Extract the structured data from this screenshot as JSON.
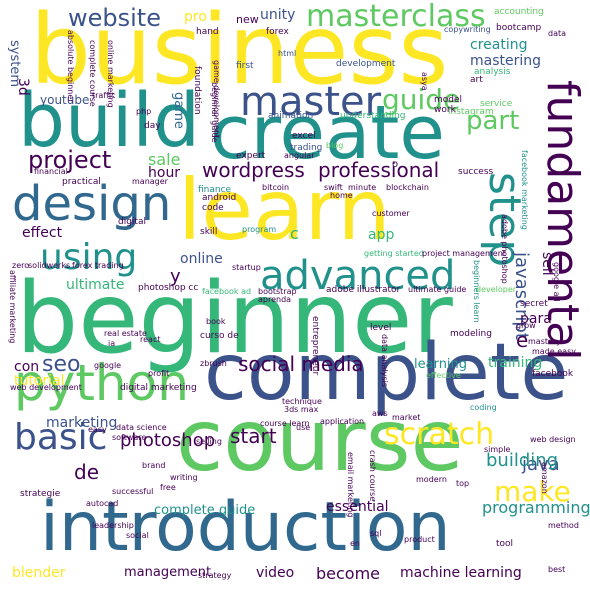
{
  "palette": {
    "dark_purple": "#440154",
    "indigo": "#3b528b",
    "teal": "#21918c",
    "green": "#5ec962",
    "yellow": "#fde725",
    "sea_green": "#35b779",
    "navy": "#31688e"
  },
  "words": {
    "business": "business",
    "create": "create",
    "learn": "learn",
    "build": "build",
    "beginner": "beginner",
    "complete": "complete",
    "course": "course",
    "introduction": "introduction",
    "python": "python",
    "design": "design",
    "master": "master",
    "fundamental": "fundamental",
    "step": "step",
    "advanced": "advanced",
    "using": "using",
    "masterclass": "masterclass",
    "website": "website",
    "wordpress": "wordpress",
    "professional": "professional",
    "project": "project",
    "guide": "guide",
    "part": "part",
    "scratch": "scratch",
    "basic": "basic",
    "make": "make",
    "social_media": "social media",
    "photoshop": "photoshop",
    "start": "start",
    "seo": "seo",
    "javascript": "javascript",
    "java": "java",
    "building": "building",
    "programming": "programming",
    "de": "de",
    "become": "become",
    "machine_learning": "machine learning",
    "blender": "blender",
    "video": "video",
    "management": "management",
    "essential": "essential",
    "complete_guide": "complete guide",
    "marketing": "marketing",
    "tutorial": "tutorial",
    "online": "online",
    "ultimate": "ultimate",
    "app": "app",
    "sale": "sale",
    "hour": "hour",
    "pro": "pro",
    "unity": "unity",
    "creating": "creating",
    "mastering": "mastering",
    "3d": "3d",
    "system": "system",
    "youtube": "youtube",
    "game": "game",
    "effect": "effect",
    "sell": "sell",
    "e": "e",
    "y": "y",
    "c": "c",
    "para": "para",
    "learning": "learning",
    "training": "training",
    "con": "con",
    "new": "new",
    "accounting": "accounting",
    "hand": "hand",
    "forex": "forex",
    "html": "html",
    "development": "development",
    "excel": "excel",
    "trading": "trading",
    "animation": "animation",
    "instagram": "instagram",
    "work": "work",
    "model": "model",
    "service": "service",
    "art": "art",
    "bootcamp": "bootcamp",
    "data": "data",
    "analysis": "analysis",
    "copywriting": "copywriting",
    "expert": "expert",
    "finance": "finance",
    "day": "day",
    "angular": "angular",
    "blog": "blog",
    "understanding": "understanding",
    "first": "first",
    "code": "code",
    "android": "android",
    "digital": "digital",
    "skill": "skill",
    "program": "program",
    "customer": "customer",
    "bitcoin": "bitcoin",
    "swift": "swift",
    "minute": "minute",
    "blockchain": "blockchain",
    "home": "home",
    "success": "success",
    "practical": "practical",
    "forex_trading": "forex trading",
    "solidworks": "solidworks",
    "zero": "zero",
    "photoshop_cc": "photoshop cc",
    "facebook_ad": "facebook ad",
    "bootstrap": "bootstrap",
    "adobe_illustrator": "adobe illustrator",
    "ultimate_guide": "ultimate guide",
    "getting_started": "getting started",
    "project_management": "project management",
    "beginners_learn": "beginners learn",
    "developer": "developer",
    "google_ad": "google ad",
    "adobe_photoshop": "adobe photoshop",
    "facebook_marketing": "facebook marketing",
    "affiliate_marketing": "affiliate marketing",
    "real_estate": "real estate",
    "ia": "ia",
    "react": "react",
    "curso_de": "curso de",
    "book": "book",
    "entrepreneur": "entrepreneur",
    "level": "level",
    "modeling": "modeling",
    "secret": "secret",
    "grow": "grow",
    "mastery": "mastery",
    "made_easy": "made easy",
    "google": "google",
    "profit": "profit",
    "zbrush": "zbrush",
    "data_analysis": "data analysis",
    "effective": "effective",
    "facebook": "facebook",
    "web_development": "web development",
    "digital_marketing": "digital marketing",
    "coding": "coding",
    "technique": "technique",
    "3ds_max": "3ds max",
    "aws": "aws",
    "market": "market",
    "easy": "easy",
    "software": "software",
    "data_science": "data science",
    "application": "application",
    "course_learn": "course learn",
    "use": "use",
    "web_design": "web design",
    "selling": "selling",
    "simple": "simple",
    "strategie": "strategie",
    "brand": "brand",
    "writing": "writing",
    "email_marketing": "email marketing",
    "crash_course": "crash course",
    "amazon": "amazon",
    "successful": "successful",
    "free": "free",
    "top": "top",
    "modern": "modern",
    "autocad": "autocad",
    "leadership": "leadership",
    "social": "social",
    "sql": "sql",
    "en": "en",
    "product": "product",
    "tool": "tool",
    "method": "method",
    "strategy": "strategy",
    "best": "best",
    "absolute_beginner": "absolute beginner",
    "complete_course": "complete course",
    "online_marketing": "online marketing",
    "traffic": "traffic",
    "php": "php",
    "foundation": "foundation",
    "beginner_guide": "beginner guide",
    "game_development": "game development",
    "financial": "financial",
    "manager": "manager",
    "asya": "asya",
    "aprenda": "aprenda",
    "startup": "startup",
    "o": "o"
  }
}
